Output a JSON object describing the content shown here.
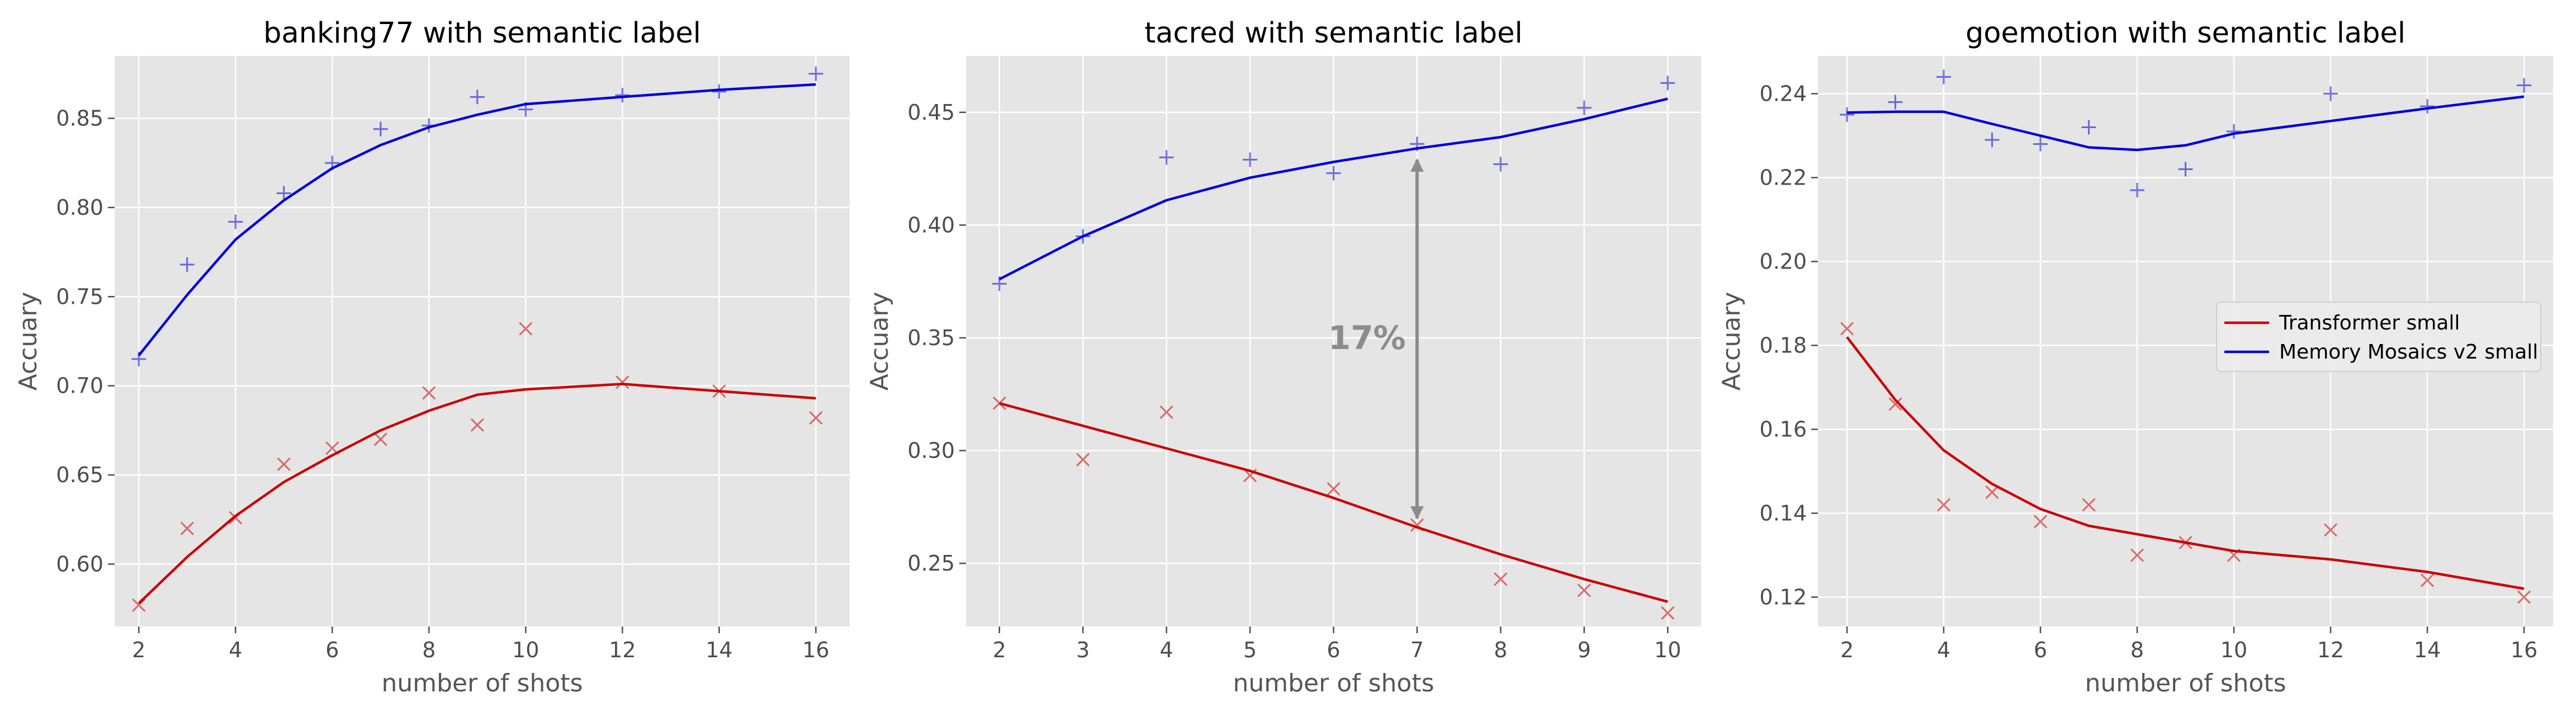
{
  "chart_data": [
    {
      "type": "line",
      "title": "banking77 with semantic label",
      "xlabel": "number of shots",
      "ylabel": "Accuary",
      "xlim": [
        1.5,
        16.7
      ],
      "ylim": [
        0.565,
        0.885
      ],
      "xticks": [
        2,
        4,
        6,
        8,
        10,
        12,
        14,
        16
      ],
      "xtick_labels": [
        "2",
        "4",
        "6",
        "8",
        "10",
        "12",
        "14",
        "16"
      ],
      "yticks": [
        0.6,
        0.65,
        0.7,
        0.75,
        0.8,
        0.85
      ],
      "ytick_labels": [
        "0.60",
        "0.65",
        "0.70",
        "0.75",
        "0.80",
        "0.85"
      ],
      "grid": true,
      "series": [
        {
          "name": "Transformer small",
          "color": "#cc0000",
          "marker": "x",
          "line_x": [
            2,
            3,
            4,
            5,
            6,
            7,
            8,
            9,
            10,
            12,
            14,
            16
          ],
          "line_y": [
            0.578,
            0.604,
            0.627,
            0.646,
            0.661,
            0.675,
            0.686,
            0.695,
            0.698,
            0.701,
            0.697,
            0.693
          ],
          "points_x": [
            2,
            3,
            4,
            5,
            6,
            7,
            8,
            9,
            10,
            12,
            14,
            16
          ],
          "points_y": [
            0.577,
            0.62,
            0.626,
            0.656,
            0.665,
            0.67,
            0.696,
            0.678,
            0.732,
            0.702,
            0.697,
            0.682
          ]
        },
        {
          "name": "Memory Mosaics v2 small",
          "color": "#0000dd",
          "marker": "+",
          "line_x": [
            2,
            3,
            4,
            5,
            6,
            7,
            8,
            9,
            10,
            12,
            14,
            16
          ],
          "line_y": [
            0.717,
            0.751,
            0.782,
            0.804,
            0.822,
            0.835,
            0.845,
            0.852,
            0.858,
            0.862,
            0.866,
            0.869
          ],
          "points_x": [
            2,
            3,
            4,
            5,
            6,
            7,
            8,
            9,
            10,
            12,
            14,
            16
          ],
          "points_y": [
            0.715,
            0.768,
            0.792,
            0.808,
            0.825,
            0.844,
            0.846,
            0.862,
            0.855,
            0.863,
            0.865,
            0.875
          ]
        }
      ]
    },
    {
      "type": "line",
      "title": "tacred with semantic label",
      "xlabel": "number of shots",
      "ylabel": "Accuary",
      "xlim": [
        1.6,
        10.4
      ],
      "ylim": [
        0.222,
        0.475
      ],
      "xticks": [
        2,
        3,
        4,
        5,
        6,
        7,
        8,
        9,
        10
      ],
      "xtick_labels": [
        "2",
        "3",
        "4",
        "5",
        "6",
        "7",
        "8",
        "9",
        "10"
      ],
      "yticks": [
        0.25,
        0.3,
        0.35,
        0.4,
        0.45
      ],
      "ytick_labels": [
        "0.25",
        "0.30",
        "0.35",
        "0.40",
        "0.45"
      ],
      "grid": true,
      "annotation": {
        "text": "17%",
        "x": 6.4,
        "y": 0.35,
        "arrow_x": 7,
        "arrow_from_y": 0.429,
        "arrow_to_y": 0.27
      },
      "series": [
        {
          "name": "Transformer small",
          "color": "#cc0000",
          "marker": "x",
          "line_x": [
            2,
            3,
            4,
            5,
            6,
            7,
            8,
            9,
            10
          ],
          "line_y": [
            0.321,
            0.311,
            0.301,
            0.291,
            0.279,
            0.266,
            0.254,
            0.243,
            0.233
          ],
          "points_x": [
            2,
            3,
            4,
            5,
            6,
            7,
            8,
            9,
            10
          ],
          "points_y": [
            0.321,
            0.296,
            0.317,
            0.289,
            0.283,
            0.267,
            0.243,
            0.238,
            0.228
          ]
        },
        {
          "name": "Memory Mosaics v2 small",
          "color": "#0000dd",
          "marker": "+",
          "line_x": [
            2,
            3,
            4,
            5,
            6,
            7,
            8,
            9,
            10
          ],
          "line_y": [
            0.376,
            0.395,
            0.411,
            0.421,
            0.428,
            0.434,
            0.439,
            0.447,
            0.456
          ],
          "points_x": [
            2,
            3,
            4,
            5,
            6,
            7,
            8,
            9,
            10
          ],
          "points_y": [
            0.374,
            0.395,
            0.43,
            0.429,
            0.423,
            0.436,
            0.427,
            0.452,
            0.463
          ]
        }
      ]
    },
    {
      "type": "line",
      "title": "goemotion with semantic label",
      "xlabel": "number of shots",
      "ylabel": "Accuary",
      "xlim": [
        1.4,
        16.6
      ],
      "ylim": [
        0.113,
        0.249
      ],
      "xticks": [
        2,
        4,
        6,
        8,
        10,
        12,
        14,
        16
      ],
      "xtick_labels": [
        "2",
        "4",
        "6",
        "8",
        "10",
        "12",
        "14",
        "16"
      ],
      "yticks": [
        0.12,
        0.14,
        0.16,
        0.18,
        0.2,
        0.22,
        0.24
      ],
      "ytick_labels": [
        "0.12",
        "0.14",
        "0.16",
        "0.18",
        "0.20",
        "0.22",
        "0.24"
      ],
      "grid": true,
      "legend": {
        "placement": "center-right",
        "entries": [
          "Transformer small",
          "Memory Mosaics v2 small"
        ]
      },
      "series": [
        {
          "name": "Transformer small",
          "color": "#cc0000",
          "marker": "x",
          "line_x": [
            2,
            3,
            4,
            5,
            6,
            7,
            8,
            9,
            10,
            12,
            14,
            16
          ],
          "line_y": [
            0.182,
            0.167,
            0.155,
            0.147,
            0.141,
            0.137,
            0.135,
            0.133,
            0.131,
            0.129,
            0.126,
            0.122
          ],
          "points_x": [
            2,
            3,
            4,
            5,
            6,
            7,
            8,
            9,
            10,
            12,
            14,
            16
          ],
          "points_y": [
            0.184,
            0.166,
            0.142,
            0.145,
            0.138,
            0.142,
            0.13,
            0.133,
            0.13,
            0.136,
            0.124,
            0.12
          ]
        },
        {
          "name": "Memory Mosaics v2 small",
          "color": "#0000dd",
          "marker": "+",
          "line_x": [
            2,
            3,
            4,
            5,
            6,
            7,
            8,
            9,
            10,
            12,
            14,
            16
          ],
          "line_y": [
            0.2355,
            0.2357,
            0.2357,
            0.2328,
            0.23,
            0.2272,
            0.2266,
            0.2277,
            0.2305,
            0.2335,
            0.2365,
            0.2393
          ],
          "points_x": [
            2,
            3,
            4,
            5,
            6,
            7,
            8,
            9,
            10,
            12,
            14,
            16
          ],
          "points_y": [
            0.235,
            0.238,
            0.244,
            0.229,
            0.228,
            0.232,
            0.217,
            0.222,
            0.231,
            0.24,
            0.237,
            0.242
          ]
        }
      ]
    }
  ]
}
